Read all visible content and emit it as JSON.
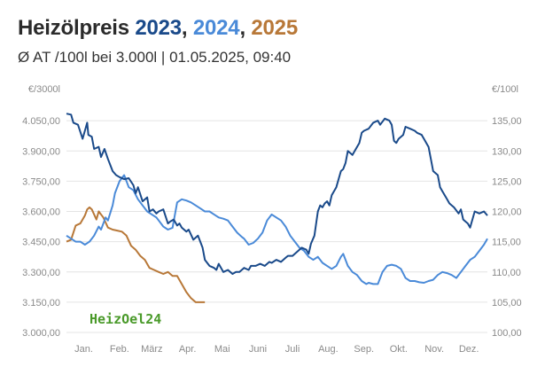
{
  "header": {
    "title_prefix": "Heizölpreis ",
    "year_a": "2023",
    "sep_a": ", ",
    "year_b": "2024",
    "sep_b": ", ",
    "year_c": "2025",
    "subtitle": "Ø AT /100l bei 3.000l | 01.05.2025, 09:40"
  },
  "brand": "HeizOel24",
  "chart_data": {
    "type": "line",
    "title": "Heizölpreis 2023, 2024, 2025",
    "subtitle": "Ø AT /100l bei 3.000l | 01.05.2025, 09:40",
    "x_unit": "day of year",
    "xlim": [
      0,
      365
    ],
    "x_ticks": [
      {
        "label": "Jan.",
        "x": 15
      },
      {
        "label": "Feb.",
        "x": 46
      },
      {
        "label": "März",
        "x": 74
      },
      {
        "label": "Apr.",
        "x": 105
      },
      {
        "label": "Mai",
        "x": 135
      },
      {
        "label": "Juni",
        "x": 166
      },
      {
        "label": "Juli",
        "x": 196
      },
      {
        "label": "Aug.",
        "x": 227
      },
      {
        "label": "Sep.",
        "x": 258
      },
      {
        "label": "Okt.",
        "x": 288
      },
      {
        "label": "Nov.",
        "x": 319
      },
      {
        "label": "Dez.",
        "x": 349
      }
    ],
    "left_axis": {
      "unit_label": "€/3000l",
      "lim": [
        3000,
        4200
      ],
      "ticks": [
        "3.000,00",
        "3.150,00",
        "3.300,00",
        "3.450,00",
        "3.600,00",
        "3.750,00",
        "3.900,00",
        "4.050,00"
      ]
    },
    "right_axis": {
      "unit_label": "€/100l",
      "lim": [
        100,
        140
      ],
      "ticks": [
        "100,00",
        "105,00",
        "110,00",
        "115,00",
        "120,00",
        "125,00",
        "130,00",
        "135,00"
      ]
    },
    "grid": true,
    "series": [
      {
        "name": "2023",
        "color": "#1a4a8a",
        "width": 2,
        "x": [
          0,
          4,
          6,
          10,
          14,
          18,
          19,
          22,
          24,
          28,
          30,
          33,
          36,
          40,
          43,
          46,
          50,
          54,
          58,
          60,
          62,
          66,
          70,
          72,
          75,
          78,
          80,
          84,
          88,
          90,
          93,
          96,
          98,
          100,
          104,
          106,
          110,
          114,
          118,
          120,
          124,
          128,
          130,
          132,
          136,
          140,
          144,
          147,
          150,
          154,
          158,
          160,
          164,
          168,
          172,
          176,
          178,
          182,
          186,
          190,
          192,
          196,
          200,
          204,
          208,
          210,
          212,
          215,
          218,
          220,
          222,
          224,
          226,
          228,
          230,
          234,
          238,
          240,
          242,
          244,
          248,
          250,
          254,
          256,
          258,
          262,
          266,
          270,
          272,
          276,
          280,
          282,
          284,
          286,
          288,
          292,
          294,
          298,
          302,
          304,
          308,
          310,
          314,
          316,
          318,
          322,
          324,
          326,
          330,
          332,
          336,
          340,
          342,
          344,
          348,
          350,
          354,
          358,
          362,
          365
        ],
        "y": [
          4085,
          4080,
          4040,
          4030,
          3960,
          4040,
          3980,
          3970,
          3910,
          3920,
          3870,
          3910,
          3860,
          3800,
          3780,
          3770,
          3760,
          3765,
          3730,
          3690,
          3720,
          3650,
          3670,
          3600,
          3610,
          3590,
          3600,
          3610,
          3540,
          3550,
          3560,
          3530,
          3540,
          3520,
          3500,
          3510,
          3460,
          3480,
          3420,
          3360,
          3330,
          3320,
          3310,
          3340,
          3300,
          3310,
          3290,
          3300,
          3300,
          3320,
          3310,
          3330,
          3330,
          3340,
          3330,
          3350,
          3345,
          3360,
          3350,
          3370,
          3380,
          3380,
          3400,
          3420,
          3410,
          3390,
          3440,
          3480,
          3600,
          3630,
          3620,
          3640,
          3650,
          3630,
          3680,
          3720,
          3800,
          3810,
          3840,
          3900,
          3880,
          3900,
          3940,
          3990,
          4000,
          4010,
          4040,
          4050,
          4030,
          4060,
          4050,
          4030,
          3950,
          3940,
          3960,
          3980,
          4020,
          4010,
          4000,
          3990,
          3980,
          3960,
          3920,
          3860,
          3800,
          3780,
          3720,
          3700,
          3660,
          3640,
          3620,
          3590,
          3610,
          3560,
          3540,
          3520,
          3600,
          3590,
          3600,
          3580
        ]
      },
      {
        "name": "2024",
        "color": "#4a8ad8",
        "width": 2,
        "x": [
          0,
          4,
          8,
          12,
          16,
          20,
          24,
          28,
          30,
          34,
          36,
          40,
          42,
          46,
          50,
          54,
          58,
          62,
          66,
          70,
          74,
          78,
          80,
          84,
          88,
          92,
          96,
          100,
          104,
          108,
          112,
          116,
          120,
          124,
          128,
          132,
          136,
          140,
          144,
          148,
          152,
          154,
          158,
          162,
          166,
          170,
          174,
          178,
          182,
          186,
          190,
          194,
          198,
          202,
          206,
          210,
          214,
          218,
          222,
          226,
          230,
          234,
          238,
          240,
          244,
          248,
          252,
          256,
          260,
          262,
          266,
          270,
          274,
          278,
          282,
          286,
          290,
          294,
          298,
          302,
          306,
          310,
          314,
          318,
          322,
          326,
          330,
          334,
          338,
          342,
          346,
          350,
          354,
          358,
          362,
          365
        ],
        "y": [
          116,
          115.5,
          115,
          115,
          114.5,
          115,
          116,
          117.5,
          117,
          119,
          118.5,
          121,
          123,
          125,
          126,
          124,
          123.5,
          122,
          121,
          120,
          119.5,
          119,
          118.5,
          117.5,
          117,
          117.3,
          121.5,
          122,
          121.8,
          121.5,
          121,
          120.5,
          120,
          120,
          119.5,
          119,
          118.8,
          118.5,
          117.5,
          116.5,
          115.8,
          115.5,
          114.5,
          114.8,
          115.5,
          116.5,
          118.5,
          119.5,
          119,
          118.5,
          117.5,
          116,
          115,
          114,
          113.5,
          112.5,
          112,
          112.5,
          111.5,
          111,
          110.5,
          111,
          112.5,
          113,
          111,
          110,
          109.5,
          108.5,
          108,
          108.2,
          108,
          108,
          110,
          111,
          111.2,
          111,
          110.5,
          109,
          108.5,
          108.5,
          108.3,
          108.2,
          108.5,
          108.7,
          109.5,
          110,
          109.8,
          109.5,
          109,
          110,
          111,
          112,
          112.5,
          113.5,
          114.5,
          115.5
        ]
      },
      {
        "name": "2025",
        "color": "#b87838",
        "width": 2,
        "x": [
          0,
          4,
          8,
          12,
          16,
          18,
          20,
          22,
          26,
          28,
          32,
          36,
          40,
          44,
          48,
          52,
          56,
          60,
          64,
          68,
          72,
          76,
          80,
          84,
          88,
          92,
          96,
          100,
          104,
          108,
          112,
          116,
          120
        ],
        "y": [
          3450,
          3460,
          3530,
          3540,
          3580,
          3610,
          3620,
          3610,
          3560,
          3600,
          3570,
          3520,
          3510,
          3505,
          3500,
          3480,
          3430,
          3410,
          3380,
          3360,
          3320,
          3310,
          3300,
          3290,
          3300,
          3280,
          3280,
          3240,
          3200,
          3170,
          3150,
          3150,
          3150
        ]
      }
    ]
  }
}
